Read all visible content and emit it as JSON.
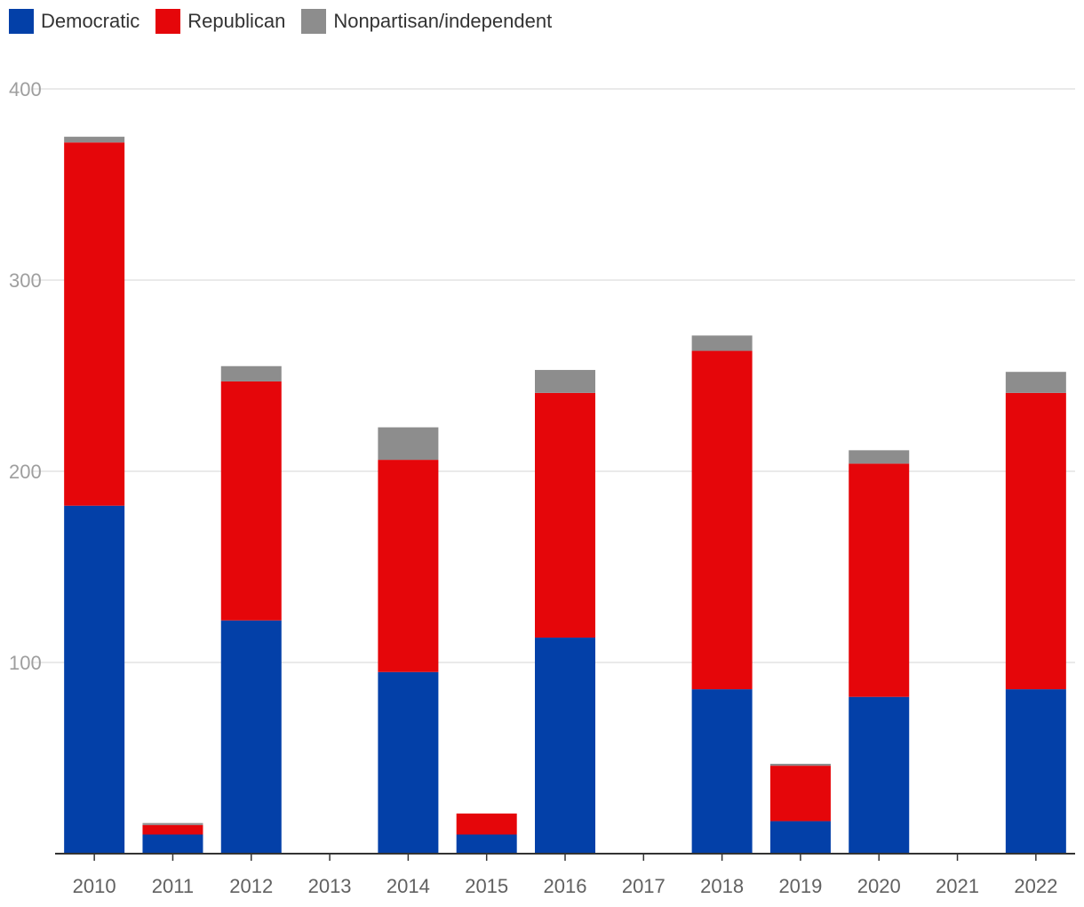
{
  "chart_data": {
    "type": "bar",
    "stacked": true,
    "title": "",
    "xlabel": "",
    "ylabel": "",
    "ylim": [
      0,
      400
    ],
    "yticks": [
      100,
      200,
      300,
      400
    ],
    "grid": true,
    "legend_position": "top-left",
    "categories": [
      "2010",
      "2011",
      "2012",
      "2013",
      "2014",
      "2015",
      "2016",
      "2017",
      "2018",
      "2019",
      "2020",
      "2021",
      "2022"
    ],
    "series": [
      {
        "name": "Democratic",
        "color": "#0340a8",
        "values": [
          182,
          10,
          122,
          0,
          95,
          10,
          113,
          0,
          86,
          17,
          82,
          0,
          86
        ]
      },
      {
        "name": "Republican",
        "color": "#e5060a",
        "values": [
          190,
          5,
          125,
          0,
          111,
          11,
          128,
          0,
          177,
          29,
          122,
          0,
          155
        ]
      },
      {
        "name": "Nonpartisan/independent",
        "color": "#8d8d8d",
        "values": [
          3,
          1,
          8,
          0,
          17,
          0,
          12,
          0,
          8,
          1,
          7,
          0,
          11
        ]
      }
    ]
  }
}
